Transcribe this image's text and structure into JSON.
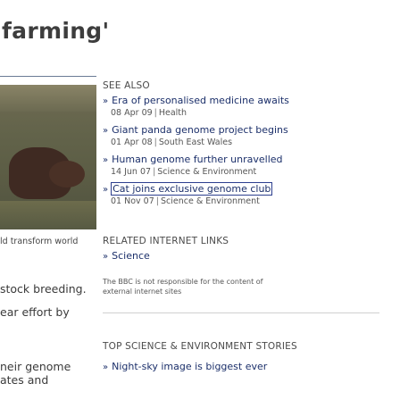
{
  "headline": "farming'",
  "photo": {
    "caption": "ld transform world"
  },
  "body_lines": [
    "stock breeding.",
    "ear effort by",
    "neir genome",
    "ates and"
  ],
  "see_also": {
    "title": "SEE ALSO",
    "items": [
      {
        "title": "Era of personalised medicine awaits",
        "date": "08 Apr 09",
        "section": "Health"
      },
      {
        "title": "Giant panda genome project begins",
        "date": "01 Apr 08",
        "section": "South East Wales"
      },
      {
        "title": "Human genome further unravelled",
        "date": "14 Jun 07",
        "section": "Science & Environment"
      },
      {
        "title": "Cat joins exclusive genome club",
        "date": "01 Nov 07",
        "section": "Science & Environment"
      }
    ]
  },
  "related_links": {
    "title": "RELATED INTERNET LINKS",
    "items": [
      {
        "title": "Science"
      }
    ],
    "disclaimer": "The BBC is not responsible for the content of external internet sites"
  },
  "top_stories": {
    "title": "TOP SCIENCE & ENVIRONMENT STORIES",
    "items": [
      {
        "title": "Night-sky image is biggest ever"
      }
    ]
  },
  "separator": "|",
  "bullet": "»"
}
